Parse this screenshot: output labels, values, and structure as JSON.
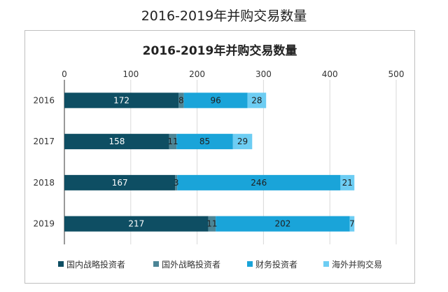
{
  "page_title": "2016-2019年并购交易数量",
  "chart_data": {
    "type": "bar",
    "orientation": "horizontal",
    "stacked": true,
    "title": "2016-2019年并购交易数量",
    "categories": [
      "2016",
      "2017",
      "2018",
      "2019"
    ],
    "series": [
      {
        "name": "国内战略投资者",
        "values": [
          172,
          158,
          167,
          217
        ],
        "color": "#0e4e63"
      },
      {
        "name": "国外战略投资者",
        "values": [
          8,
          11,
          3,
          11
        ],
        "color": "#4c8596"
      },
      {
        "name": "财务投资者",
        "values": [
          96,
          85,
          246,
          202
        ],
        "color": "#1aa4d9"
      },
      {
        "name": "海外并购交易",
        "values": [
          28,
          29,
          21,
          7
        ],
        "color": "#6dcdf3"
      }
    ],
    "xlim": [
      0,
      500
    ],
    "xticks": [
      0,
      100,
      200,
      300,
      400,
      500
    ],
    "xtick_position": "top",
    "grid": true,
    "legend": "bottom"
  }
}
